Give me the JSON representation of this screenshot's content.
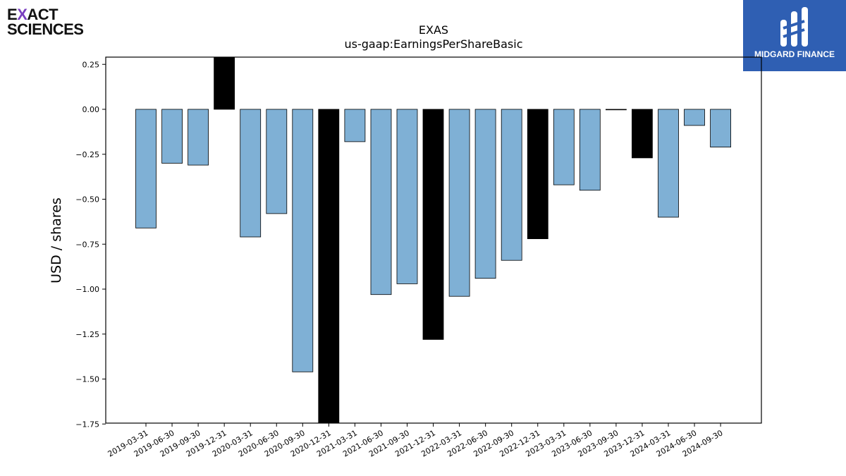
{
  "logos": {
    "left": {
      "line1_pre": "E",
      "line1_x": "X",
      "line1_post": "ACT",
      "line2": "SCIENCES"
    },
    "right": {
      "text": "MIDGARD FINANCE"
    }
  },
  "chart_data": {
    "type": "bar",
    "title": "EXAS",
    "subtitle": "us-gaap:EarningsPerShareBasic",
    "ylabel": "USD / shares",
    "xlabel": "",
    "ylim": [
      -1.75,
      0.3
    ],
    "yticks": [
      0.25,
      0.0,
      -0.25,
      -0.5,
      -0.75,
      -1.0,
      -1.25,
      -1.5,
      -1.75
    ],
    "ytick_labels": [
      "0.25",
      "0.00",
      "−0.25",
      "−0.50",
      "−0.75",
      "−1.00",
      "−1.25",
      "−1.50",
      "−1.75"
    ],
    "grid": false,
    "colors": {
      "quarter": "#7fb0d5",
      "year_end": "#000000",
      "edge": "#000000"
    },
    "categories": [
      "2019-03-31",
      "2019-06-30",
      "2019-09-30",
      "2019-12-31",
      "2020-03-31",
      "2020-06-30",
      "2020-09-30",
      "2020-12-31",
      "2021-03-31",
      "2021-06-30",
      "2021-09-30",
      "2021-12-31",
      "2022-03-31",
      "2022-06-30",
      "2022-09-30",
      "2022-12-31",
      "2023-03-31",
      "2023-06-30",
      "2023-09-30",
      "2023-12-31",
      "2024-03-31",
      "2024-06-30",
      "2024-09-30"
    ],
    "values": [
      -0.66,
      -0.3,
      -0.31,
      0.32,
      -0.71,
      -0.58,
      -1.46,
      -1.8,
      -0.18,
      -1.03,
      -0.97,
      -1.28,
      -1.04,
      -0.94,
      -0.84,
      -0.72,
      -0.42,
      -0.45,
      -0.002,
      -0.27,
      -0.6,
      -0.09,
      -0.21
    ],
    "year_end": [
      false,
      false,
      false,
      true,
      false,
      false,
      false,
      true,
      false,
      false,
      false,
      true,
      false,
      false,
      false,
      true,
      false,
      false,
      false,
      true,
      false,
      false,
      false
    ]
  }
}
